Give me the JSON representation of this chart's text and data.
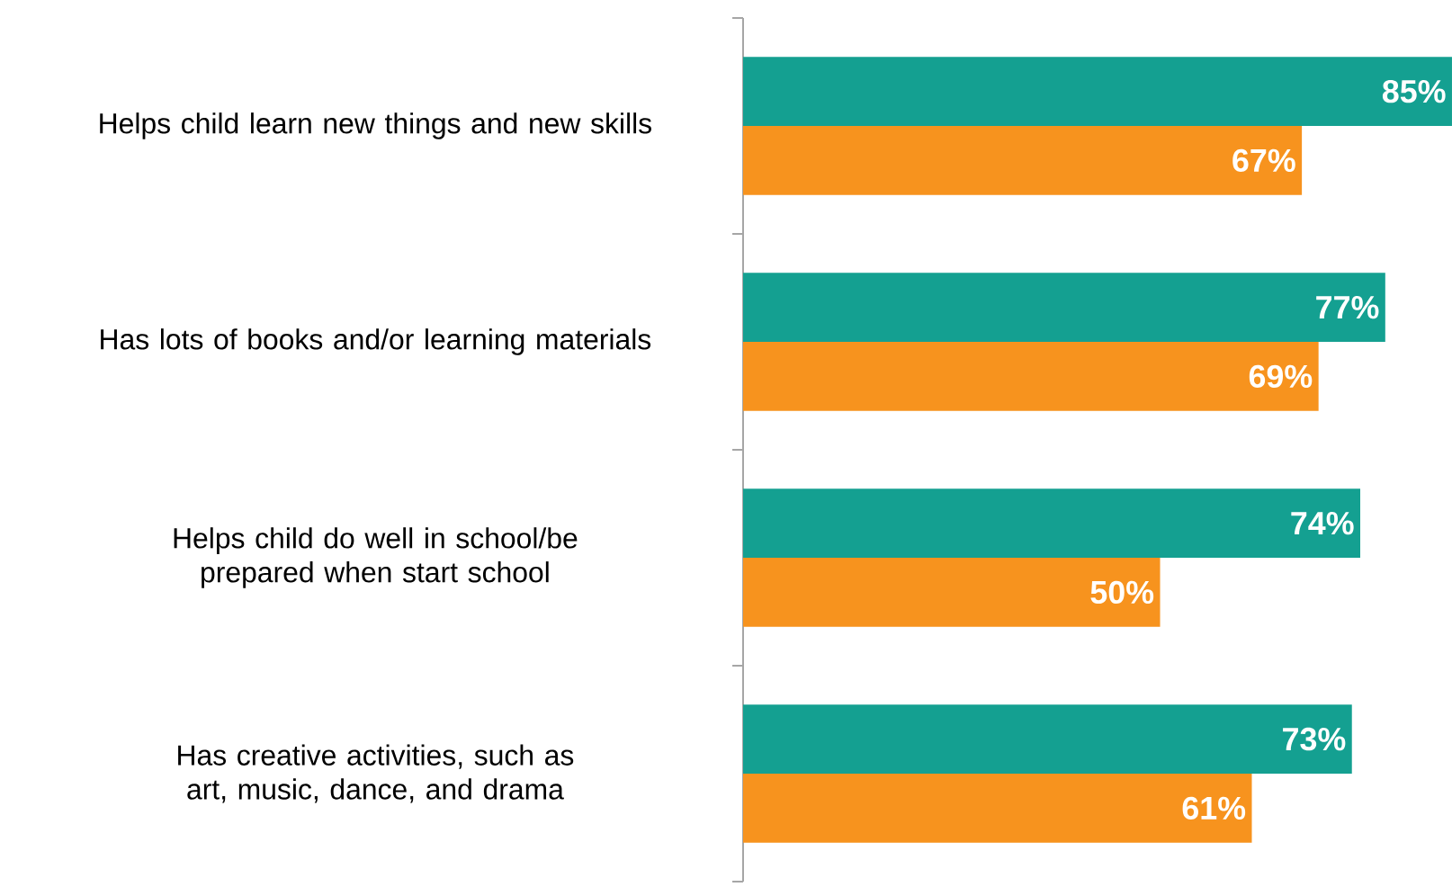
{
  "chart_data": {
    "type": "bar",
    "orientation": "horizontal",
    "tick_labels": "y",
    "xlim": [
      0,
      85
    ],
    "categories": [
      "Helps child learn new things and new skills",
      "Has lots of books and/or learning materials",
      "Helps child do well in school/be prepared when start school",
      "Has creative activities, such as art, music, dance, and drama"
    ],
    "series": [
      {
        "color": "#14a091",
        "values": [
          85,
          77,
          74,
          73
        ],
        "value_labels": [
          "85%",
          "77%",
          "74%",
          "73%"
        ]
      },
      {
        "color": "#f7931e",
        "values": [
          67,
          69,
          50,
          61
        ],
        "value_labels": [
          "67%",
          "69%",
          "50%",
          "61%"
        ]
      }
    ]
  }
}
